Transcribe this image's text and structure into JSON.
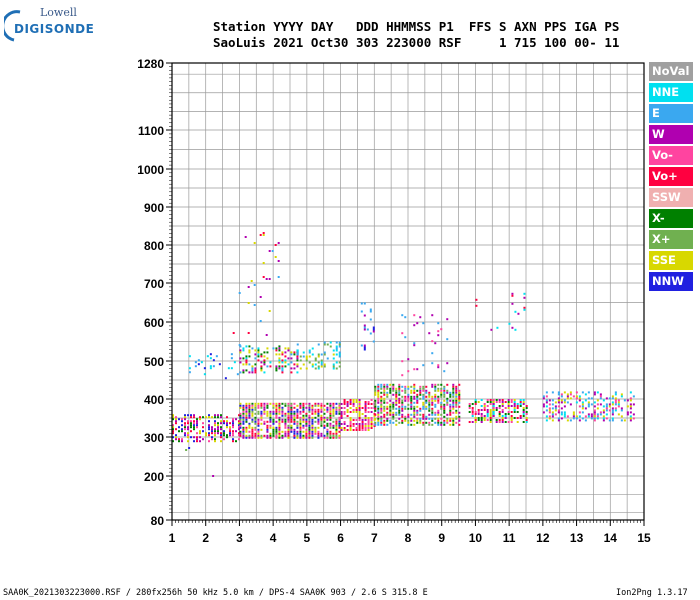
{
  "logo": {
    "line1": "Lowell",
    "line2": "DIGISONDE"
  },
  "header": {
    "line1": "Station YYYY DAY   DDD HHMMSS P1  FFS S AXN PPS IGA PS",
    "line2": "SaoLuis 2021 Oct30 303 223000 RSF     1 715 100 00- 11"
  },
  "footer": {
    "left": "SAA0K_2021303223000.RSF / 280fx256h 50 kHz 5.0 km / DPS-4 SAA0K 903 / 2.6 S 315.8 E",
    "right": "Ion2Png 1.3.17"
  },
  "legend": [
    {
      "label": "NoVal",
      "color": "#a0a0a0"
    },
    {
      "label": "NNE",
      "color": "#00e0f0"
    },
    {
      "label": "E",
      "color": "#3aa8f0"
    },
    {
      "label": "W",
      "color": "#b000b0"
    },
    {
      "label": "Vo-",
      "color": "#ff44a0"
    },
    {
      "label": "Vo+",
      "color": "#ff0040"
    },
    {
      "label": "SSW",
      "color": "#f0b0b0"
    },
    {
      "label": "X-",
      "color": "#008000"
    },
    {
      "label": "X+",
      "color": "#70b050"
    },
    {
      "label": "SSE",
      "color": "#d8d800"
    },
    {
      "label": "NNW",
      "color": "#2020e0"
    }
  ],
  "chart_data": {
    "type": "scatter",
    "title": "",
    "xlabel": "",
    "ylabel": "",
    "xlim": [
      1,
      15
    ],
    "ylim": [
      80,
      1280
    ],
    "x_ticks": [
      "1",
      "2",
      "3",
      "4",
      "5",
      "6",
      "7",
      "8",
      "9",
      "10",
      "11",
      "12",
      "13",
      "14",
      "15"
    ],
    "y_ticks": [
      "80",
      "200",
      "300",
      "400",
      "500",
      "600",
      "700",
      "800",
      "900",
      "1000",
      "1100",
      "1280"
    ],
    "y_scale": "nonlinear (virtual height axis, ticks unequally spaced)",
    "grid": true,
    "regions": [
      {
        "x0": 1.0,
        "x1": 3.0,
        "y0": 290,
        "y1": 360,
        "colors": [
          "#2020e0",
          "#b000b0",
          "#ff0040",
          "#ff44a0",
          "#d8d800",
          "#008000"
        ],
        "density": 0.55
      },
      {
        "x0": 3.0,
        "x1": 6.0,
        "y0": 300,
        "y1": 390,
        "colors": [
          "#ff0040",
          "#ff44a0",
          "#b000b0",
          "#2020e0",
          "#d8d800",
          "#008000",
          "#70b050"
        ],
        "density": 0.75
      },
      {
        "x0": 3.0,
        "x1": 4.7,
        "y0": 470,
        "y1": 540,
        "colors": [
          "#d8d800",
          "#00e0f0",
          "#3aa8f0",
          "#b000b0",
          "#008000",
          "#ff0040"
        ],
        "density": 0.45
      },
      {
        "x0": 4.7,
        "x1": 6.0,
        "y0": 480,
        "y1": 550,
        "colors": [
          "#3aa8f0",
          "#00e0f0",
          "#d8d800",
          "#70b050"
        ],
        "density": 0.35
      },
      {
        "x0": 1.5,
        "x1": 3.0,
        "y0": 455,
        "y1": 520,
        "colors": [
          "#3aa8f0",
          "#00e0f0",
          "#2020e0"
        ],
        "density": 0.15
      },
      {
        "x0": 6.0,
        "x1": 7.0,
        "y0": 320,
        "y1": 400,
        "colors": [
          "#ff0040",
          "#ff44a0",
          "#b000b0",
          "#d8d800"
        ],
        "density": 0.6
      },
      {
        "x0": 7.0,
        "x1": 9.5,
        "y0": 330,
        "y1": 440,
        "colors": [
          "#ff0040",
          "#ff44a0",
          "#b000b0",
          "#008000",
          "#d8d800",
          "#70b050",
          "#3aa8f0"
        ],
        "density": 0.7
      },
      {
        "x0": 9.8,
        "x1": 11.5,
        "y0": 340,
        "y1": 400,
        "colors": [
          "#d8d800",
          "#ff0040",
          "#ff44a0",
          "#b000b0",
          "#008000",
          "#00e0f0"
        ],
        "density": 0.6
      },
      {
        "x0": 12.0,
        "x1": 14.7,
        "y0": 345,
        "y1": 420,
        "colors": [
          "#00e0f0",
          "#3aa8f0",
          "#b000b0",
          "#d8d800",
          "#ff44a0"
        ],
        "density": 0.4
      },
      {
        "x0": 2.8,
        "x1": 4.2,
        "y0": 540,
        "y1": 850,
        "colors": [
          "#3aa8f0",
          "#b000b0",
          "#ff0040",
          "#d8d800"
        ],
        "density": 0.03
      },
      {
        "x0": 6.6,
        "x1": 7.0,
        "y0": 530,
        "y1": 650,
        "colors": [
          "#2020e0",
          "#3aa8f0",
          "#b000b0"
        ],
        "density": 0.12
      },
      {
        "x0": 7.8,
        "x1": 9.2,
        "y0": 460,
        "y1": 620,
        "colors": [
          "#b000b0",
          "#ff44a0",
          "#3aa8f0"
        ],
        "density": 0.05
      },
      {
        "x0": 10.0,
        "x1": 11.5,
        "y0": 580,
        "y1": 680,
        "colors": [
          "#b000b0",
          "#ff0040",
          "#00e0f0"
        ],
        "density": 0.03
      },
      {
        "x0": 1.3,
        "x1": 2.3,
        "y0": 170,
        "y1": 300,
        "colors": [
          "#b000b0",
          "#70b050",
          "#2020e0"
        ],
        "density": 0.01
      }
    ]
  }
}
